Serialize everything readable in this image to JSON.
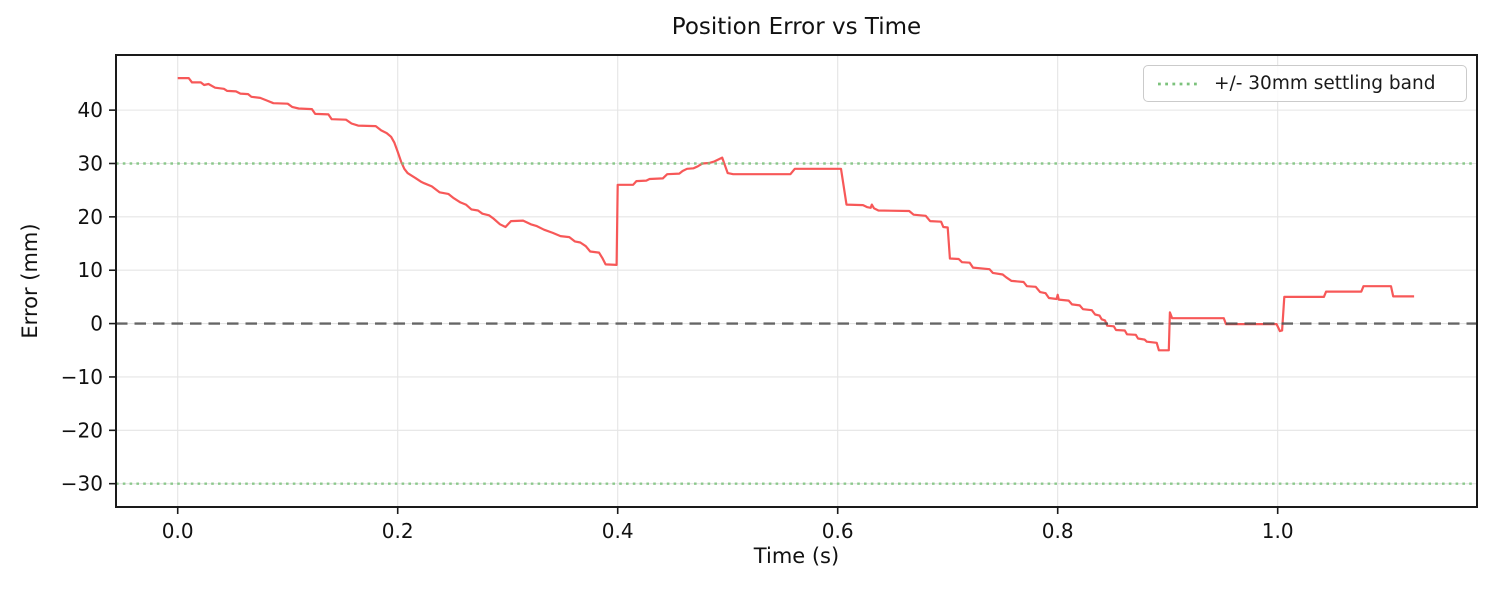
{
  "chart_data": {
    "type": "line",
    "title": "Position Error vs Time",
    "xlabel": "Time (s)",
    "ylabel": "Error (mm)",
    "grid": true,
    "xlim": [
      -0.0561,
      1.1812
    ],
    "ylim": [
      -34.37,
      50.33
    ],
    "xticks": {
      "values": [
        0.0,
        0.2,
        0.4,
        0.6,
        0.8,
        1.0
      ],
      "labels": [
        "0.0",
        "0.2",
        "0.4",
        "0.6",
        "0.8",
        "1.0"
      ]
    },
    "yticks": {
      "values": [
        40,
        30,
        20,
        10,
        0,
        -10,
        -20,
        -30
      ],
      "labels": [
        "40",
        "30",
        "20",
        "10",
        "0",
        "−10",
        "−20",
        "−30"
      ]
    },
    "legend": [
      {
        "label": "+/- 30mm settling band",
        "style": "dotted",
        "color": "#7cc27c"
      }
    ],
    "legend_position": "upper right",
    "reference_lines": [
      {
        "name": "upper-settling-band",
        "value": 30,
        "style": "dotted",
        "color": "#7cc27c"
      },
      {
        "name": "lower-settling-band",
        "value": -30,
        "style": "dotted",
        "color": "#7cc27c"
      },
      {
        "name": "zero-error-line",
        "value": 0,
        "style": "dashed",
        "color": "#4f4f4f"
      }
    ],
    "colors": {
      "series": "#f64a4a",
      "grid": "#e5e5e5",
      "spine": "#1a1a1a",
      "tick_text": "#111111"
    },
    "series": [
      {
        "name": "position-error",
        "color": "#f64a4a",
        "points": [
          [
            0.0,
            46.0
          ],
          [
            0.01,
            46.0
          ],
          [
            0.013,
            45.2
          ],
          [
            0.021,
            45.2
          ],
          [
            0.024,
            44.7
          ],
          [
            0.028,
            44.9
          ],
          [
            0.034,
            44.2
          ],
          [
            0.042,
            44.0
          ],
          [
            0.045,
            43.6
          ],
          [
            0.053,
            43.5
          ],
          [
            0.057,
            43.1
          ],
          [
            0.064,
            43.0
          ],
          [
            0.067,
            42.5
          ],
          [
            0.075,
            42.3
          ],
          [
            0.081,
            41.8
          ],
          [
            0.087,
            41.3
          ],
          [
            0.1,
            41.2
          ],
          [
            0.104,
            40.6
          ],
          [
            0.11,
            40.3
          ],
          [
            0.122,
            40.2
          ],
          [
            0.125,
            39.3
          ],
          [
            0.137,
            39.2
          ],
          [
            0.14,
            38.3
          ],
          [
            0.153,
            38.2
          ],
          [
            0.158,
            37.5
          ],
          [
            0.164,
            37.1
          ],
          [
            0.18,
            37.0
          ],
          [
            0.185,
            36.2
          ],
          [
            0.19,
            35.7
          ],
          [
            0.194,
            35.0
          ],
          [
            0.197,
            33.9
          ],
          [
            0.2,
            32.2
          ],
          [
            0.203,
            30.4
          ],
          [
            0.206,
            29.0
          ],
          [
            0.209,
            28.2
          ],
          [
            0.212,
            27.8
          ],
          [
            0.216,
            27.3
          ],
          [
            0.221,
            26.6
          ],
          [
            0.224,
            26.3
          ],
          [
            0.231,
            25.7
          ],
          [
            0.238,
            24.6
          ],
          [
            0.246,
            24.3
          ],
          [
            0.251,
            23.5
          ],
          [
            0.257,
            22.7
          ],
          [
            0.262,
            22.3
          ],
          [
            0.267,
            21.4
          ],
          [
            0.273,
            21.2
          ],
          [
            0.277,
            20.6
          ],
          [
            0.283,
            20.3
          ],
          [
            0.287,
            19.7
          ],
          [
            0.293,
            18.6
          ],
          [
            0.298,
            18.1
          ],
          [
            0.303,
            19.2
          ],
          [
            0.314,
            19.3
          ],
          [
            0.321,
            18.6
          ],
          [
            0.326,
            18.3
          ],
          [
            0.333,
            17.6
          ],
          [
            0.341,
            17.0
          ],
          [
            0.348,
            16.4
          ],
          [
            0.356,
            16.2
          ],
          [
            0.361,
            15.4
          ],
          [
            0.366,
            15.2
          ],
          [
            0.371,
            14.5
          ],
          [
            0.375,
            13.5
          ],
          [
            0.383,
            13.3
          ],
          [
            0.386,
            12.3
          ],
          [
            0.389,
            11.1
          ],
          [
            0.399,
            11.0
          ],
          [
            0.4,
            26.0
          ],
          [
            0.414,
            26.0
          ],
          [
            0.417,
            26.7
          ],
          [
            0.426,
            26.8
          ],
          [
            0.429,
            27.1
          ],
          [
            0.441,
            27.2
          ],
          [
            0.445,
            28.0
          ],
          [
            0.456,
            28.1
          ],
          [
            0.459,
            28.6
          ],
          [
            0.463,
            29.0
          ],
          [
            0.469,
            29.1
          ],
          [
            0.473,
            29.5
          ],
          [
            0.477,
            30.0
          ],
          [
            0.483,
            30.1
          ],
          [
            0.488,
            30.4
          ],
          [
            0.495,
            31.1
          ],
          [
            0.5,
            28.2
          ],
          [
            0.505,
            28.0
          ],
          [
            0.557,
            28.0
          ],
          [
            0.561,
            29.0
          ],
          [
            0.603,
            29.0
          ],
          [
            0.608,
            22.3
          ],
          [
            0.623,
            22.2
          ],
          [
            0.627,
            21.8
          ],
          [
            0.63,
            21.7
          ],
          [
            0.631,
            22.3
          ],
          [
            0.633,
            21.6
          ],
          [
            0.637,
            21.2
          ],
          [
            0.665,
            21.1
          ],
          [
            0.669,
            20.4
          ],
          [
            0.68,
            20.2
          ],
          [
            0.684,
            19.2
          ],
          [
            0.694,
            19.1
          ],
          [
            0.696,
            18.1
          ],
          [
            0.7,
            18.0
          ],
          [
            0.702,
            12.2
          ],
          [
            0.71,
            12.1
          ],
          [
            0.713,
            11.5
          ],
          [
            0.72,
            11.4
          ],
          [
            0.723,
            10.5
          ],
          [
            0.738,
            10.2
          ],
          [
            0.741,
            9.5
          ],
          [
            0.75,
            9.2
          ],
          [
            0.753,
            8.7
          ],
          [
            0.758,
            8.0
          ],
          [
            0.769,
            7.8
          ],
          [
            0.772,
            7.0
          ],
          [
            0.78,
            6.9
          ],
          [
            0.784,
            5.9
          ],
          [
            0.789,
            5.7
          ],
          [
            0.792,
            4.8
          ],
          [
            0.799,
            4.6
          ],
          [
            0.8,
            5.4
          ],
          [
            0.801,
            4.5
          ],
          [
            0.81,
            4.3
          ],
          [
            0.813,
            3.6
          ],
          [
            0.82,
            3.4
          ],
          [
            0.823,
            2.7
          ],
          [
            0.831,
            2.5
          ],
          [
            0.834,
            1.7
          ],
          [
            0.838,
            1.5
          ],
          [
            0.84,
            0.8
          ],
          [
            0.843,
            0.6
          ],
          [
            0.845,
            -0.4
          ],
          [
            0.851,
            -0.5
          ],
          [
            0.853,
            -1.2
          ],
          [
            0.861,
            -1.3
          ],
          [
            0.863,
            -2.0
          ],
          [
            0.871,
            -2.1
          ],
          [
            0.873,
            -2.8
          ],
          [
            0.879,
            -3.0
          ],
          [
            0.881,
            -3.4
          ],
          [
            0.89,
            -3.6
          ],
          [
            0.892,
            -5.0
          ],
          [
            0.901,
            -5.0
          ],
          [
            0.902,
            2.1
          ],
          [
            0.904,
            1.0
          ],
          [
            0.951,
            1.0
          ],
          [
            0.953,
            -0.1
          ],
          [
            0.999,
            -0.1
          ],
          [
            1.002,
            -1.4
          ],
          [
            1.004,
            -1.3
          ],
          [
            1.006,
            5.0
          ],
          [
            1.042,
            5.0
          ],
          [
            1.044,
            6.0
          ],
          [
            1.076,
            6.0
          ],
          [
            1.078,
            7.0
          ],
          [
            1.103,
            7.0
          ],
          [
            1.105,
            5.1
          ],
          [
            1.124,
            5.1
          ]
        ]
      }
    ]
  }
}
